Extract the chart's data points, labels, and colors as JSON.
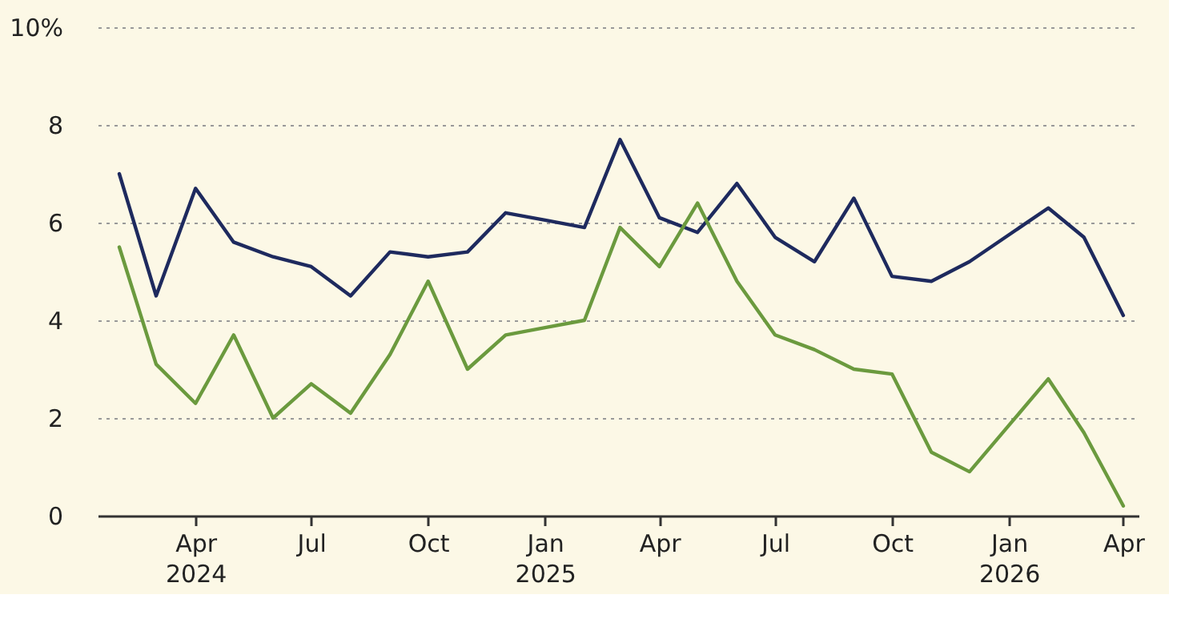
{
  "chart_data": {
    "type": "line",
    "x": [
      "2024-02",
      "2024-03",
      "2024-04",
      "2024-05",
      "2024-06",
      "2024-07",
      "2024-08",
      "2024-09",
      "2024-10",
      "2024-11",
      "2024-12",
      "2025-01",
      "2025-02",
      "2025-03",
      "2025-04",
      "2025-05",
      "2025-06",
      "2025-07",
      "2025-08",
      "2025-09",
      "2025-10",
      "2025-11",
      "2025-12",
      "2026-01",
      "2026-02",
      "2026-03",
      "2026-04"
    ],
    "series": [
      {
        "color": "#1e2a5e",
        "values": [
          7.0,
          4.5,
          6.7,
          5.6,
          5.3,
          5.1,
          4.5,
          5.4,
          5.3,
          5.4,
          6.2,
          6.05,
          5.9,
          7.7,
          6.1,
          5.8,
          6.8,
          5.7,
          5.2,
          6.5,
          4.9,
          4.8,
          5.2,
          5.75,
          6.3,
          5.7,
          4.1
        ]
      },
      {
        "color": "#6b9a3e",
        "values": [
          5.5,
          3.1,
          2.3,
          3.7,
          2.0,
          2.7,
          2.1,
          3.3,
          4.8,
          3.0,
          3.7,
          3.85,
          4.0,
          5.9,
          5.1,
          6.4,
          4.8,
          3.7,
          3.4,
          3.0,
          2.9,
          1.3,
          0.9,
          1.85,
          2.8,
          1.7,
          0.2
        ]
      }
    ],
    "xlim": [
      "2024-01-15",
      "2026-04-13"
    ],
    "xticks": [
      {
        "value": "2024-04",
        "label": "Apr\n2024"
      },
      {
        "value": "2024-07",
        "label": "Jul"
      },
      {
        "value": "2024-10",
        "label": "Oct"
      },
      {
        "value": "2025-01",
        "label": "Jan\n2025"
      },
      {
        "value": "2025-04",
        "label": "Apr"
      },
      {
        "value": "2025-07",
        "label": "Jul"
      },
      {
        "value": "2025-10",
        "label": "Oct"
      },
      {
        "value": "2026-01",
        "label": "Jan\n2026"
      },
      {
        "value": "2026-04",
        "label": "Apr"
      }
    ],
    "ylim": [
      0,
      10
    ],
    "yticks": [
      0,
      2,
      4,
      6,
      8,
      {
        "value": 10,
        "label": "10%"
      }
    ],
    "grid": "y",
    "legend": false,
    "marker": "none",
    "line_style": "solid"
  }
}
